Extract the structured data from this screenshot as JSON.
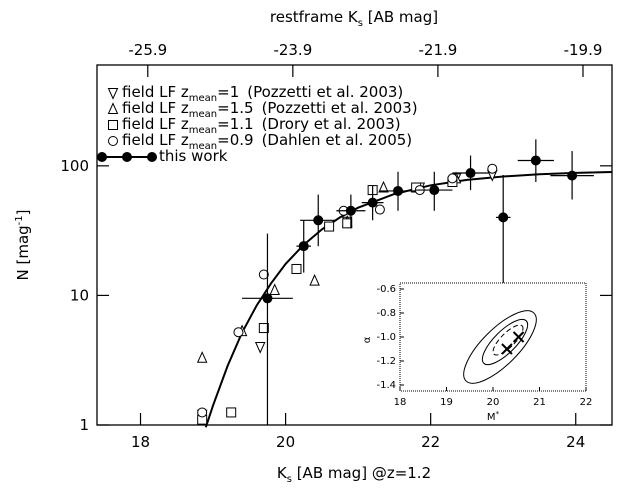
{
  "chart_data": {
    "type": "scatter",
    "log_y": true,
    "xlabel": [
      "K",
      "s",
      " [AB mag] @z=1.2"
    ],
    "top_xlabel": [
      "restframe K",
      "s",
      " [AB mag]"
    ],
    "ylabel": [
      "N [mag",
      "-1",
      "]"
    ],
    "xlim": [
      17.4,
      24.5
    ],
    "xticks": [
      18,
      20,
      22,
      24
    ],
    "top_xlim": [
      -26.6,
      -19.5
    ],
    "top_xticks": [
      -25.9,
      -23.9,
      -21.9,
      -19.9
    ],
    "ylim": [
      1,
      600
    ],
    "yticks": [
      1,
      10,
      100
    ],
    "series": [
      {
        "label": [
          "field LF z",
          "mean",
          "=1",
          "(Pozzetti et al. 2003)"
        ],
        "marker": "down-triangle",
        "color": "#000000",
        "x": [
          18.85,
          19.65,
          20.85,
          21.85,
          22.35,
          22.85
        ],
        "values": [
          1.2,
          4,
          37,
          68,
          80,
          85
        ]
      },
      {
        "label": [
          "field LF z",
          "mean",
          "=1.5",
          "(Pozzetti et al. 2003)"
        ],
        "marker": "up-triangle",
        "color": "#000000",
        "x": [
          18.85,
          19.4,
          19.85,
          20.4,
          20.85,
          21.35,
          22.35
        ],
        "values": [
          3.3,
          5.3,
          11,
          13,
          37,
          68,
          80
        ]
      },
      {
        "label": [
          "field LF z",
          "mean",
          "=1.1",
          "(Drory et al. 2003)"
        ],
        "marker": "square",
        "color": "#000000",
        "x": [
          18.85,
          19.25,
          19.7,
          20.15,
          20.6,
          20.85,
          21.2,
          21.8,
          22.3
        ],
        "values": [
          1.1,
          1.25,
          5.6,
          16,
          34,
          36,
          65,
          68,
          75
        ]
      },
      {
        "label": [
          "field LF z",
          "mean",
          "=0.9",
          "(Dahlen et al. 2005)"
        ],
        "marker": "circle",
        "color": "#000000",
        "x": [
          18.85,
          19.35,
          19.7,
          20.25,
          20.8,
          21.3,
          21.85,
          22.3,
          22.85
        ],
        "values": [
          1.25,
          5.2,
          14.5,
          24,
          45,
          46,
          65,
          80,
          95
        ]
      },
      {
        "label": [
          "this work"
        ],
        "marker": "filled-circle",
        "color": "#000000",
        "x": [
          19.75,
          20.25,
          20.45,
          20.9,
          21.2,
          21.55,
          22.05,
          22.55,
          23.0,
          23.45,
          23.95
        ],
        "values": [
          9.5,
          24,
          38,
          45,
          52,
          64,
          65,
          88,
          40,
          110,
          84
        ],
        "yerr_low": [
          1,
          15,
          24,
          33,
          38,
          45,
          45,
          65,
          2,
          75,
          55
        ],
        "yerr_high": [
          30,
          38,
          60,
          60,
          70,
          90,
          90,
          120,
          85,
          160,
          130
        ],
        "xerr": [
          0.35,
          0.1,
          0.25,
          0.2,
          0.15,
          0.25,
          0.25,
          0.25,
          0.1,
          0.25,
          0.3
        ]
      }
    ],
    "fit": {
      "x": [
        18.9,
        19.0,
        19.2,
        19.4,
        19.6,
        19.8,
        20.0,
        20.25,
        20.5,
        20.75,
        21.0,
        21.5,
        22.0,
        22.5,
        23.0,
        23.5,
        24.0,
        24.5
      ],
      "values": [
        0.96,
        1.42,
        2.86,
        5.17,
        8.35,
        12.4,
        17.5,
        24.6,
        32.3,
        40.0,
        47.5,
        60.6,
        70.7,
        77.9,
        82.8,
        86.1,
        88.2,
        89.6
      ]
    },
    "inset": {
      "xlabel": [
        "M",
        "*"
      ],
      "ylabel": "α",
      "xlim": [
        18,
        22
      ],
      "xticks": [
        18,
        19,
        20,
        21,
        22
      ],
      "ylim": [
        -1.45,
        -0.55
      ],
      "yticks": [
        {
          "value": -0.6,
          "label": "-0.6"
        },
        {
          "value": -0.8,
          "label": "-0.8"
        },
        {
          "value": -1.0,
          "label": "-1.0"
        },
        {
          "value": -1.2,
          "label": "-1.2"
        },
        {
          "value": -1.4,
          "label": "-1.4"
        }
      ],
      "x": [
        20.3,
        20.55
      ],
      "values": [
        -1.1,
        -1.0
      ]
    }
  }
}
